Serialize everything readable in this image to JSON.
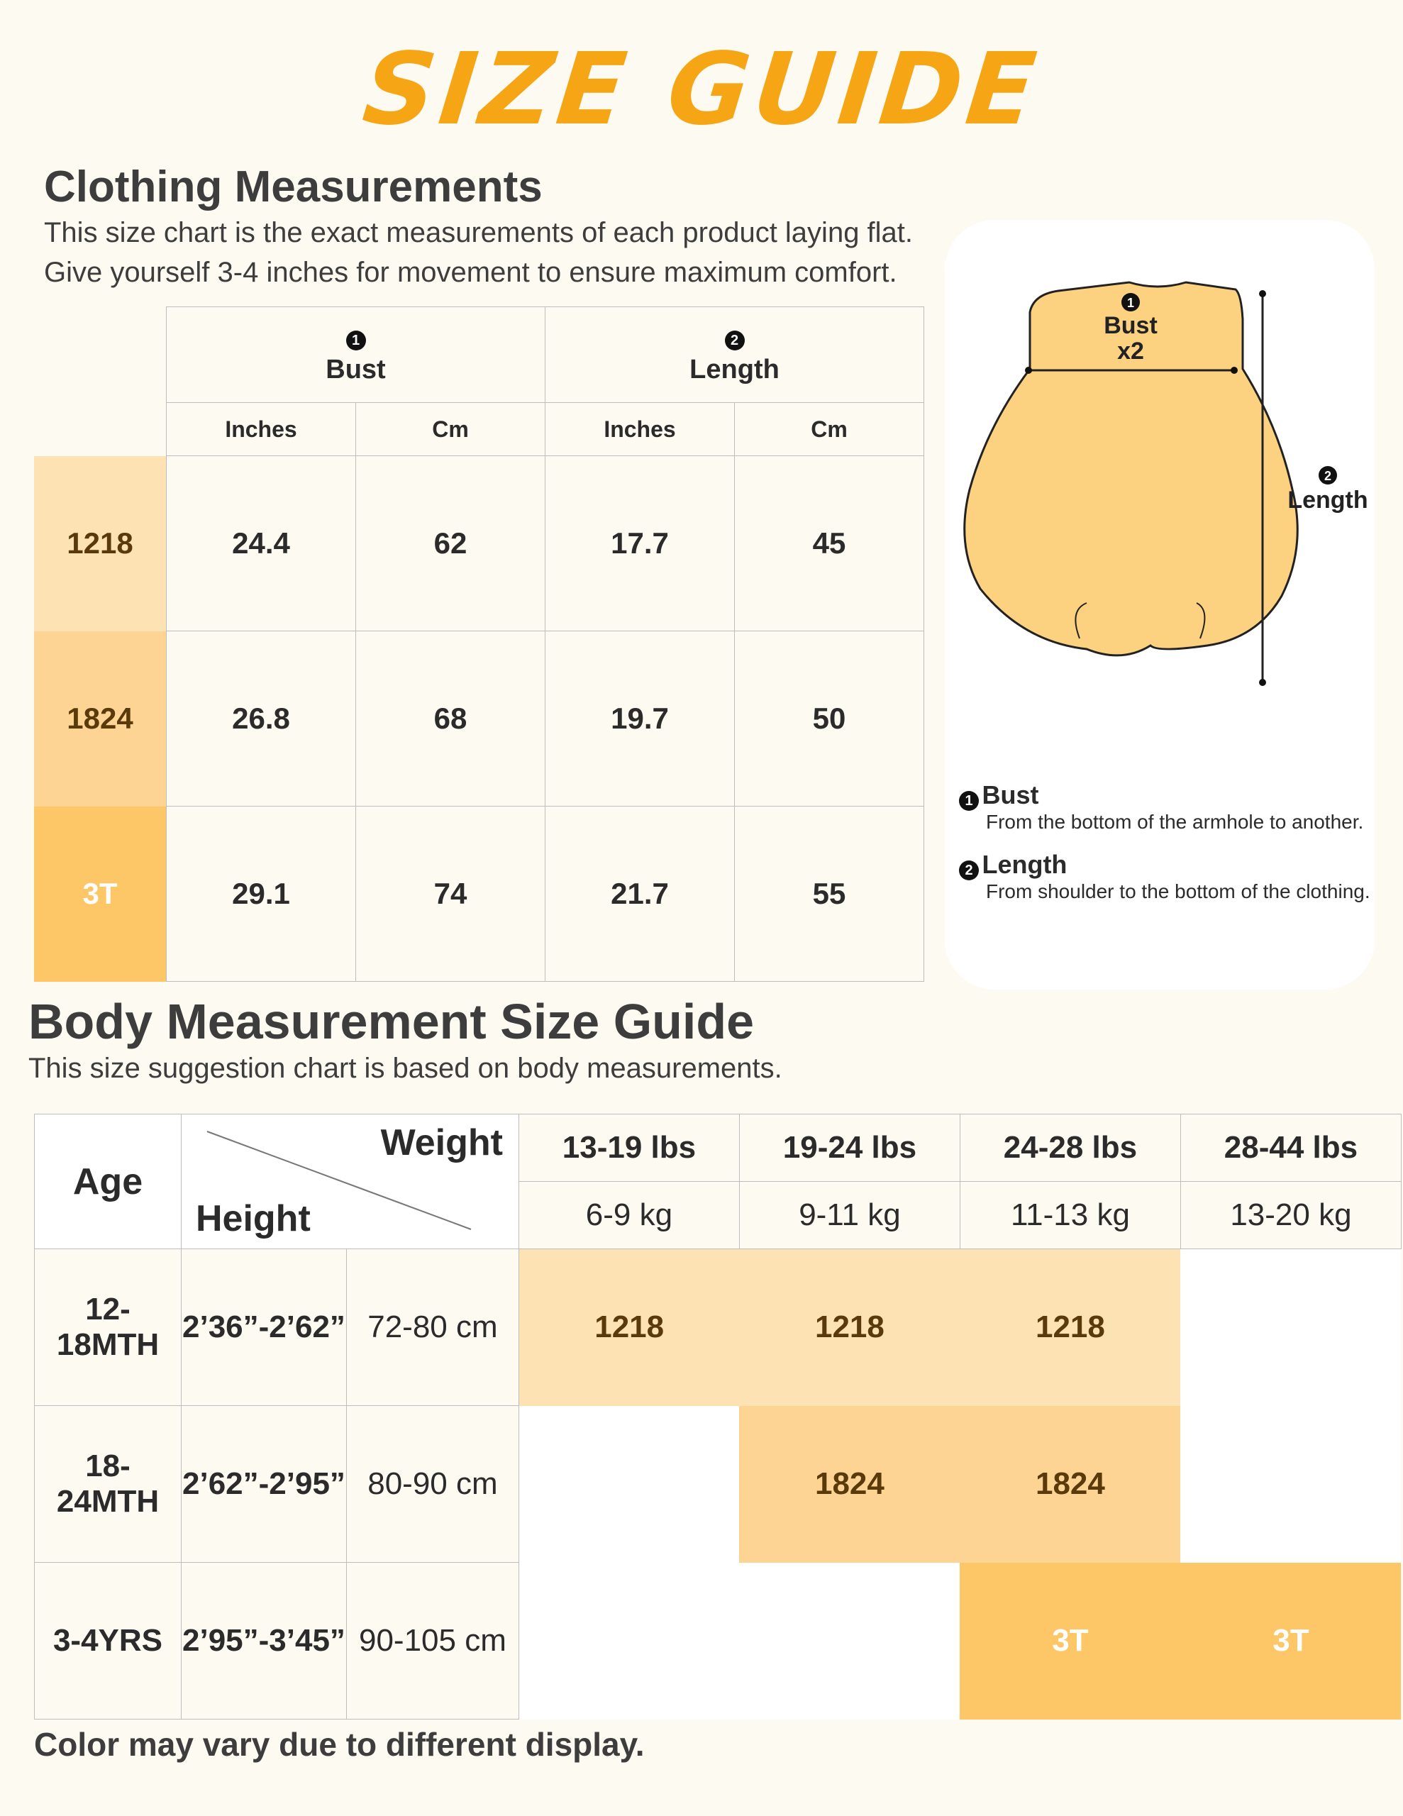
{
  "title": "SIZE GUIDE",
  "clothing": {
    "heading": "Clothing Measurements",
    "desc_line1": "This size chart is the exact measurements of each product laying flat.",
    "desc_line2": "Give yourself 3-4 inches for movement to ensure maximum comfort.",
    "col_bust": "Bust",
    "col_length": "Length",
    "num1": "1",
    "num2": "2",
    "unit_in": "Inches",
    "unit_cm": "Cm",
    "rows": [
      {
        "size": "1218",
        "bust_in": "24.4",
        "bust_cm": "62",
        "len_in": "17.7",
        "len_cm": "45"
      },
      {
        "size": "1824",
        "bust_in": "26.8",
        "bust_cm": "68",
        "len_in": "19.7",
        "len_cm": "50"
      },
      {
        "size": "3T",
        "bust_in": "29.1",
        "bust_cm": "74",
        "len_in": "21.7",
        "len_cm": "55"
      }
    ]
  },
  "diagram": {
    "bust_label": "Bust",
    "bust_x2": "x2",
    "length_label": "Length",
    "legend_bust_title": "Bust",
    "legend_bust_desc": "From the bottom of the armhole to another.",
    "legend_length_title": "Length",
    "legend_length_desc": "From shoulder to the bottom of the clothing."
  },
  "body": {
    "heading": "Body Measurement Size Guide",
    "desc": "This size suggestion chart is based on body measurements.",
    "age_label": "Age",
    "weight_label": "Weight",
    "height_label": "Height",
    "weights_lbs": [
      "13-19 lbs",
      "19-24 lbs",
      "24-28 lbs",
      "28-44 lbs"
    ],
    "weights_kg": [
      "6-9 kg",
      "9-11 kg",
      "11-13 kg",
      "13-20 kg"
    ],
    "rows": [
      {
        "age": "12-18MTH",
        "height_ft": "2’36”-2’62”",
        "height_cm": "72-80 cm",
        "sizes": [
          "1218",
          "1218",
          "1218",
          ""
        ]
      },
      {
        "age": "18-24MTH",
        "height_ft": "2’62”-2’95”",
        "height_cm": "80-90 cm",
        "sizes": [
          "",
          "1824",
          "1824",
          ""
        ]
      },
      {
        "age": "3-4YRS",
        "height_ft": "2’95”-3’45”",
        "height_cm": "90-105 cm",
        "sizes": [
          "",
          "",
          "3T",
          "3T"
        ]
      }
    ]
  },
  "footer": "Color may vary due to different display.",
  "colors": {
    "title": "#f6a515",
    "size_1218": "#fde3b3",
    "size_1824": "#fdd494",
    "size_3T": "#fdc667"
  }
}
